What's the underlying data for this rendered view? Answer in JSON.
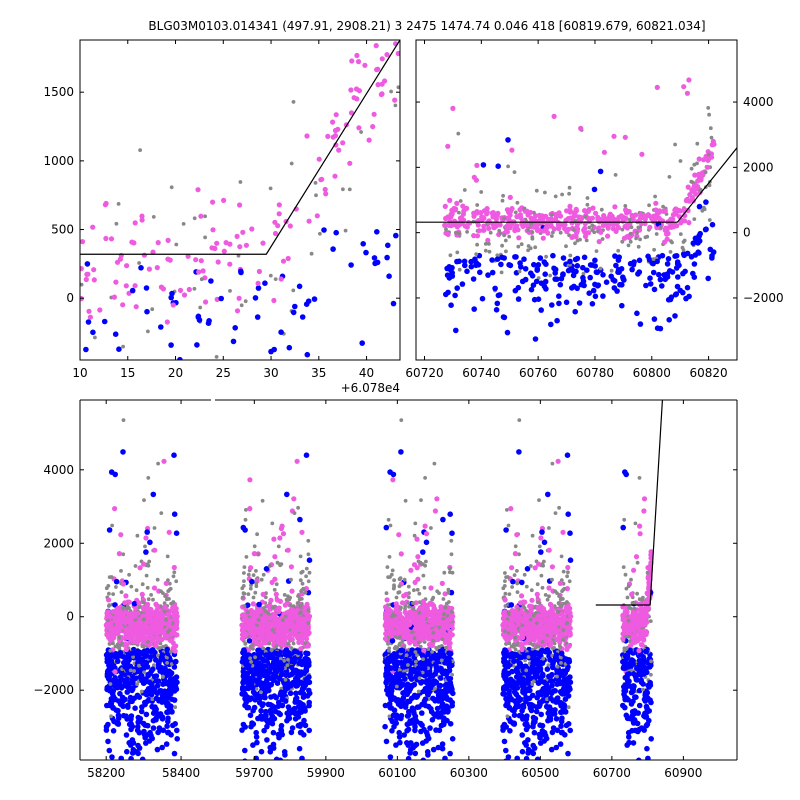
{
  "figure": {
    "title": "BLG03M0103.014341 (497.91, 2908.21)     3 2475 1474.74 0.046 418 [60819.679, 60821.034]"
  },
  "colors": {
    "series_a": "#ee5ae0",
    "series_b": "#0000ff",
    "series_c": "#888888",
    "model": "#000000"
  },
  "chart_data": [
    {
      "id": "top-left",
      "type": "scatter",
      "offset_label": "+6.078e4",
      "xlim": [
        10,
        43.5
      ],
      "ylim": [
        -450,
        1880
      ],
      "xticks": [
        10,
        15,
        20,
        25,
        30,
        35,
        40
      ],
      "yticks": [
        0,
        500,
        1000,
        1500
      ],
      "model_line": [
        [
          10,
          320
        ],
        [
          29.5,
          320
        ],
        [
          43.5,
          1880
        ]
      ]
    },
    {
      "id": "top-right",
      "type": "scatter",
      "xlim": [
        60717,
        60830
      ],
      "ylim": [
        -3900,
        5900
      ],
      "xticks": [
        60720,
        60740,
        60760,
        60780,
        60800,
        60820
      ],
      "yticks": [
        -2000,
        0,
        2000,
        4000
      ],
      "model_line": [
        [
          60717,
          320
        ],
        [
          60809,
          320
        ],
        [
          60830,
          2600
        ]
      ]
    },
    {
      "id": "bottom",
      "type": "scatter",
      "ylim": [
        -3900,
        5900
      ],
      "yticks": [
        -2000,
        0,
        2000,
        4000
      ],
      "segments": [
        {
          "xlim": [
            58130,
            58480
          ],
          "xticks": [
            58200,
            58400
          ]
        },
        {
          "xlim": [
            59590,
            61050
          ],
          "xticks": [
            59700,
            59900,
            60100,
            60300,
            60500,
            60700,
            60900
          ]
        }
      ],
      "clusters": [
        {
          "center": 58295,
          "half_width": 95
        },
        {
          "center": 59760,
          "half_width": 95
        },
        {
          "center": 60160,
          "half_width": 95
        },
        {
          "center": 60490,
          "half_width": 95
        },
        {
          "center": 60770,
          "half_width": 40
        }
      ],
      "model_line": [
        [
          60655,
          320
        ],
        [
          60807,
          320
        ],
        [
          60842,
          6000
        ]
      ]
    }
  ]
}
